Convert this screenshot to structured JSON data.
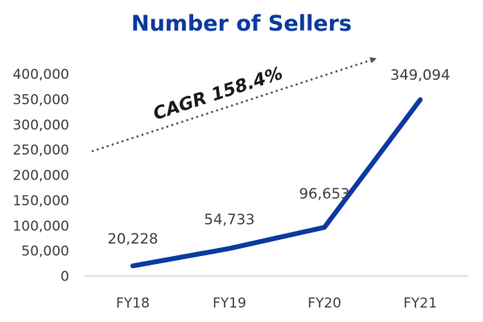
{
  "chart_data": {
    "type": "line",
    "title": "Number of Sellers",
    "xlabel": "",
    "ylabel": "",
    "categories": [
      "FY18",
      "FY19",
      "FY20",
      "FY21"
    ],
    "series": [
      {
        "values": [
          20228,
          54733,
          96653,
          349094
        ],
        "data_labels": [
          "20,228",
          "54,733",
          "96,653",
          "349,094"
        ],
        "color": "#0b3a9e"
      }
    ],
    "ylim": [
      0,
      400000
    ],
    "yticks": [
      0,
      50000,
      100000,
      150000,
      200000,
      250000,
      300000,
      350000,
      400000
    ],
    "ytick_labels": [
      "0",
      "50,000",
      "100,000",
      "150,000",
      "200,000",
      "250,000",
      "300,000",
      "350,000",
      "400,000"
    ],
    "grid": false,
    "legend": "none",
    "annotation": {
      "text": "CAGR 158.4%",
      "arrow_style": "dotted",
      "arrow_color": "#555555"
    }
  }
}
